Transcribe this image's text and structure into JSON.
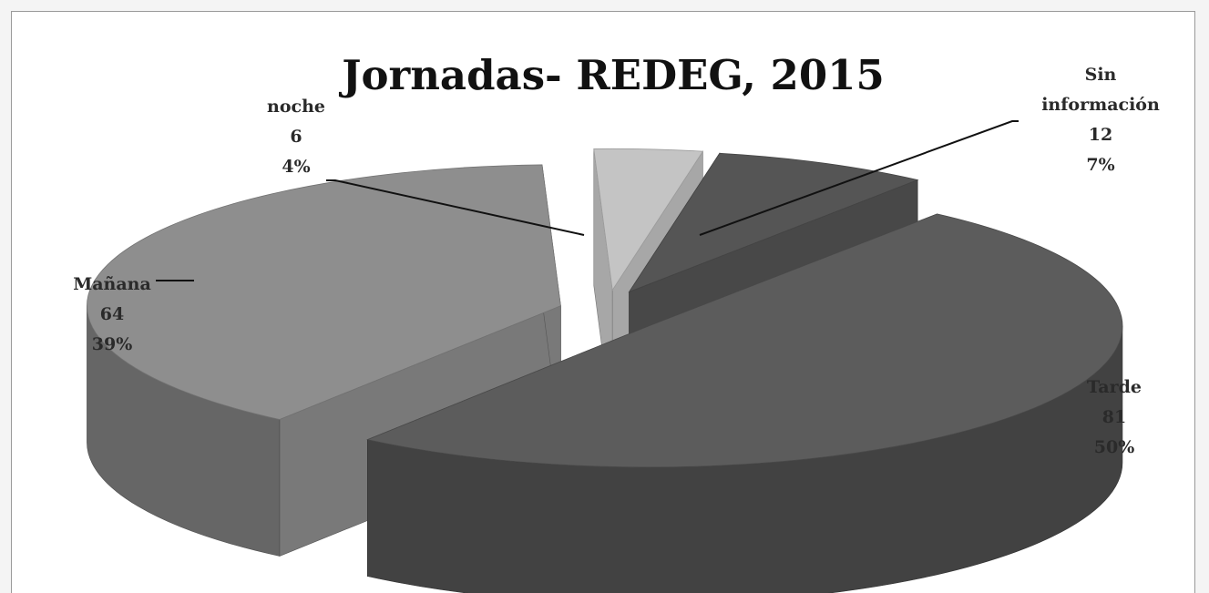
{
  "chart_data": {
    "type": "pie",
    "title": "Jornadas- REDEG, 2015",
    "slices": [
      {
        "name": "Sin información",
        "label_lines": [
          "Sin",
          "información"
        ],
        "value": 12,
        "percent": "7%",
        "color": "#555555"
      },
      {
        "name": "Tarde",
        "label_lines": [
          "Tarde"
        ],
        "value": 81,
        "percent": "50%",
        "color": "#5c5c5c"
      },
      {
        "name": "Mañana",
        "label_lines": [
          "Mañana"
        ],
        "value": 64,
        "percent": "39%",
        "color": "#8e8e8e"
      },
      {
        "name": "noche",
        "label_lines": [
          "noche"
        ],
        "value": 6,
        "percent": "4%",
        "color": "#c4c4c4"
      }
    ],
    "style": "3d-exploded",
    "legend": "none",
    "colors": {
      "side_dark": "#3e3e3e",
      "side_mid": "#6c6c6c",
      "background": "#ffffff",
      "text": "#2a2a2a"
    }
  }
}
